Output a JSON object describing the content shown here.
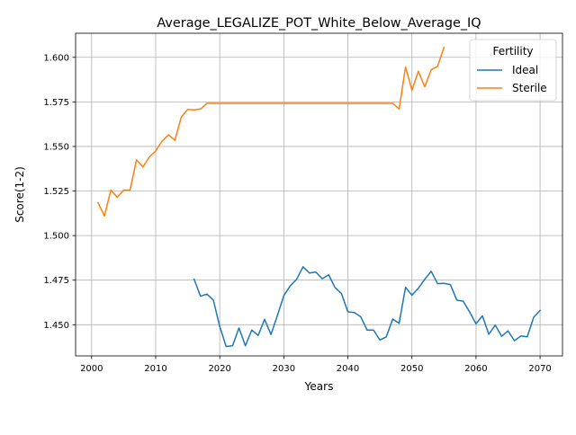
{
  "chart_data": {
    "type": "line",
    "title": "Average_LEGALIZE_POT_White_Below_Average_IQ",
    "xlabel": "Years",
    "ylabel": "Score(1-2)",
    "xlim": [
      1997.5,
      2073.5
    ],
    "ylim": [
      1.4325,
      1.6135
    ],
    "xticks": [
      2000,
      2010,
      2020,
      2030,
      2040,
      2050,
      2060,
      2070
    ],
    "yticks": [
      1.45,
      1.475,
      1.5,
      1.525,
      1.55,
      1.575,
      1.6
    ],
    "ytick_labels": [
      "1.450",
      "1.475",
      "1.500",
      "1.525",
      "1.550",
      "1.575",
      "1.600"
    ],
    "grid": true,
    "legend": {
      "title": "Fertility",
      "placement": "top-right"
    },
    "series": [
      {
        "name": "Ideal",
        "color": "#1f77b4",
        "x": [
          2016,
          2017,
          2018,
          2019,
          2020,
          2021,
          2022,
          2023,
          2024,
          2025,
          2026,
          2027,
          2028,
          2029,
          2030,
          2031,
          2032,
          2033,
          2034,
          2035,
          2036,
          2037,
          2038,
          2039,
          2040,
          2041,
          2042,
          2043,
          2044,
          2045,
          2046,
          2047,
          2048,
          2049,
          2050,
          2051,
          2052,
          2053,
          2054,
          2055,
          2056,
          2057,
          2058,
          2059,
          2060,
          2061,
          2062,
          2063,
          2064,
          2065,
          2066,
          2067,
          2068,
          2069,
          2070
        ],
        "y": [
          1.4755,
          1.466,
          1.4672,
          1.4638,
          1.449,
          1.4378,
          1.4382,
          1.4482,
          1.4382,
          1.447,
          1.444,
          1.453,
          1.4445,
          1.4552,
          1.4663,
          1.4718,
          1.4755,
          1.4825,
          1.479,
          1.4795,
          1.4758,
          1.478,
          1.4708,
          1.4675,
          1.4572,
          1.4568,
          1.4545,
          1.447,
          1.447,
          1.4414,
          1.4432,
          1.4532,
          1.4508,
          1.471,
          1.4665,
          1.4705,
          1.4755,
          1.48,
          1.473,
          1.4732,
          1.4725,
          1.4638,
          1.4632,
          1.4572,
          1.4505,
          1.455,
          1.4446,
          1.4498,
          1.4435,
          1.4465,
          1.441,
          1.4437,
          1.4432,
          1.4542,
          1.458
        ]
      },
      {
        "name": "Sterile",
        "color": "#ff7f0e",
        "x": [
          2001,
          2002,
          2003,
          2004,
          2005,
          2006,
          2007,
          2008,
          2009,
          2010,
          2011,
          2012,
          2013,
          2014,
          2015,
          2016,
          2017,
          2018,
          2019,
          2020,
          2021,
          2022,
          2023,
          2024,
          2025,
          2026,
          2027,
          2028,
          2029,
          2030,
          2031,
          2032,
          2033,
          2034,
          2035,
          2036,
          2037,
          2038,
          2039,
          2040,
          2041,
          2042,
          2043,
          2044,
          2045,
          2046,
          2047,
          2048,
          2049,
          2050,
          2051,
          2052,
          2053,
          2054,
          2055
        ],
        "y": [
          1.5185,
          1.511,
          1.5255,
          1.5215,
          1.5255,
          1.5255,
          1.5425,
          1.5385,
          1.544,
          1.5475,
          1.553,
          1.5565,
          1.5535,
          1.5665,
          1.5708,
          1.5705,
          1.571,
          1.5742,
          1.5742,
          1.5742,
          1.5742,
          1.5742,
          1.5742,
          1.5742,
          1.5742,
          1.5742,
          1.5742,
          1.5742,
          1.5742,
          1.5742,
          1.5742,
          1.5742,
          1.5742,
          1.5742,
          1.5742,
          1.5742,
          1.5742,
          1.5742,
          1.5742,
          1.5742,
          1.5742,
          1.5742,
          1.5742,
          1.5742,
          1.5742,
          1.5742,
          1.5742,
          1.571,
          1.5945,
          1.5815,
          1.5922,
          1.5835,
          1.593,
          1.595,
          1.6055
        ]
      }
    ]
  }
}
